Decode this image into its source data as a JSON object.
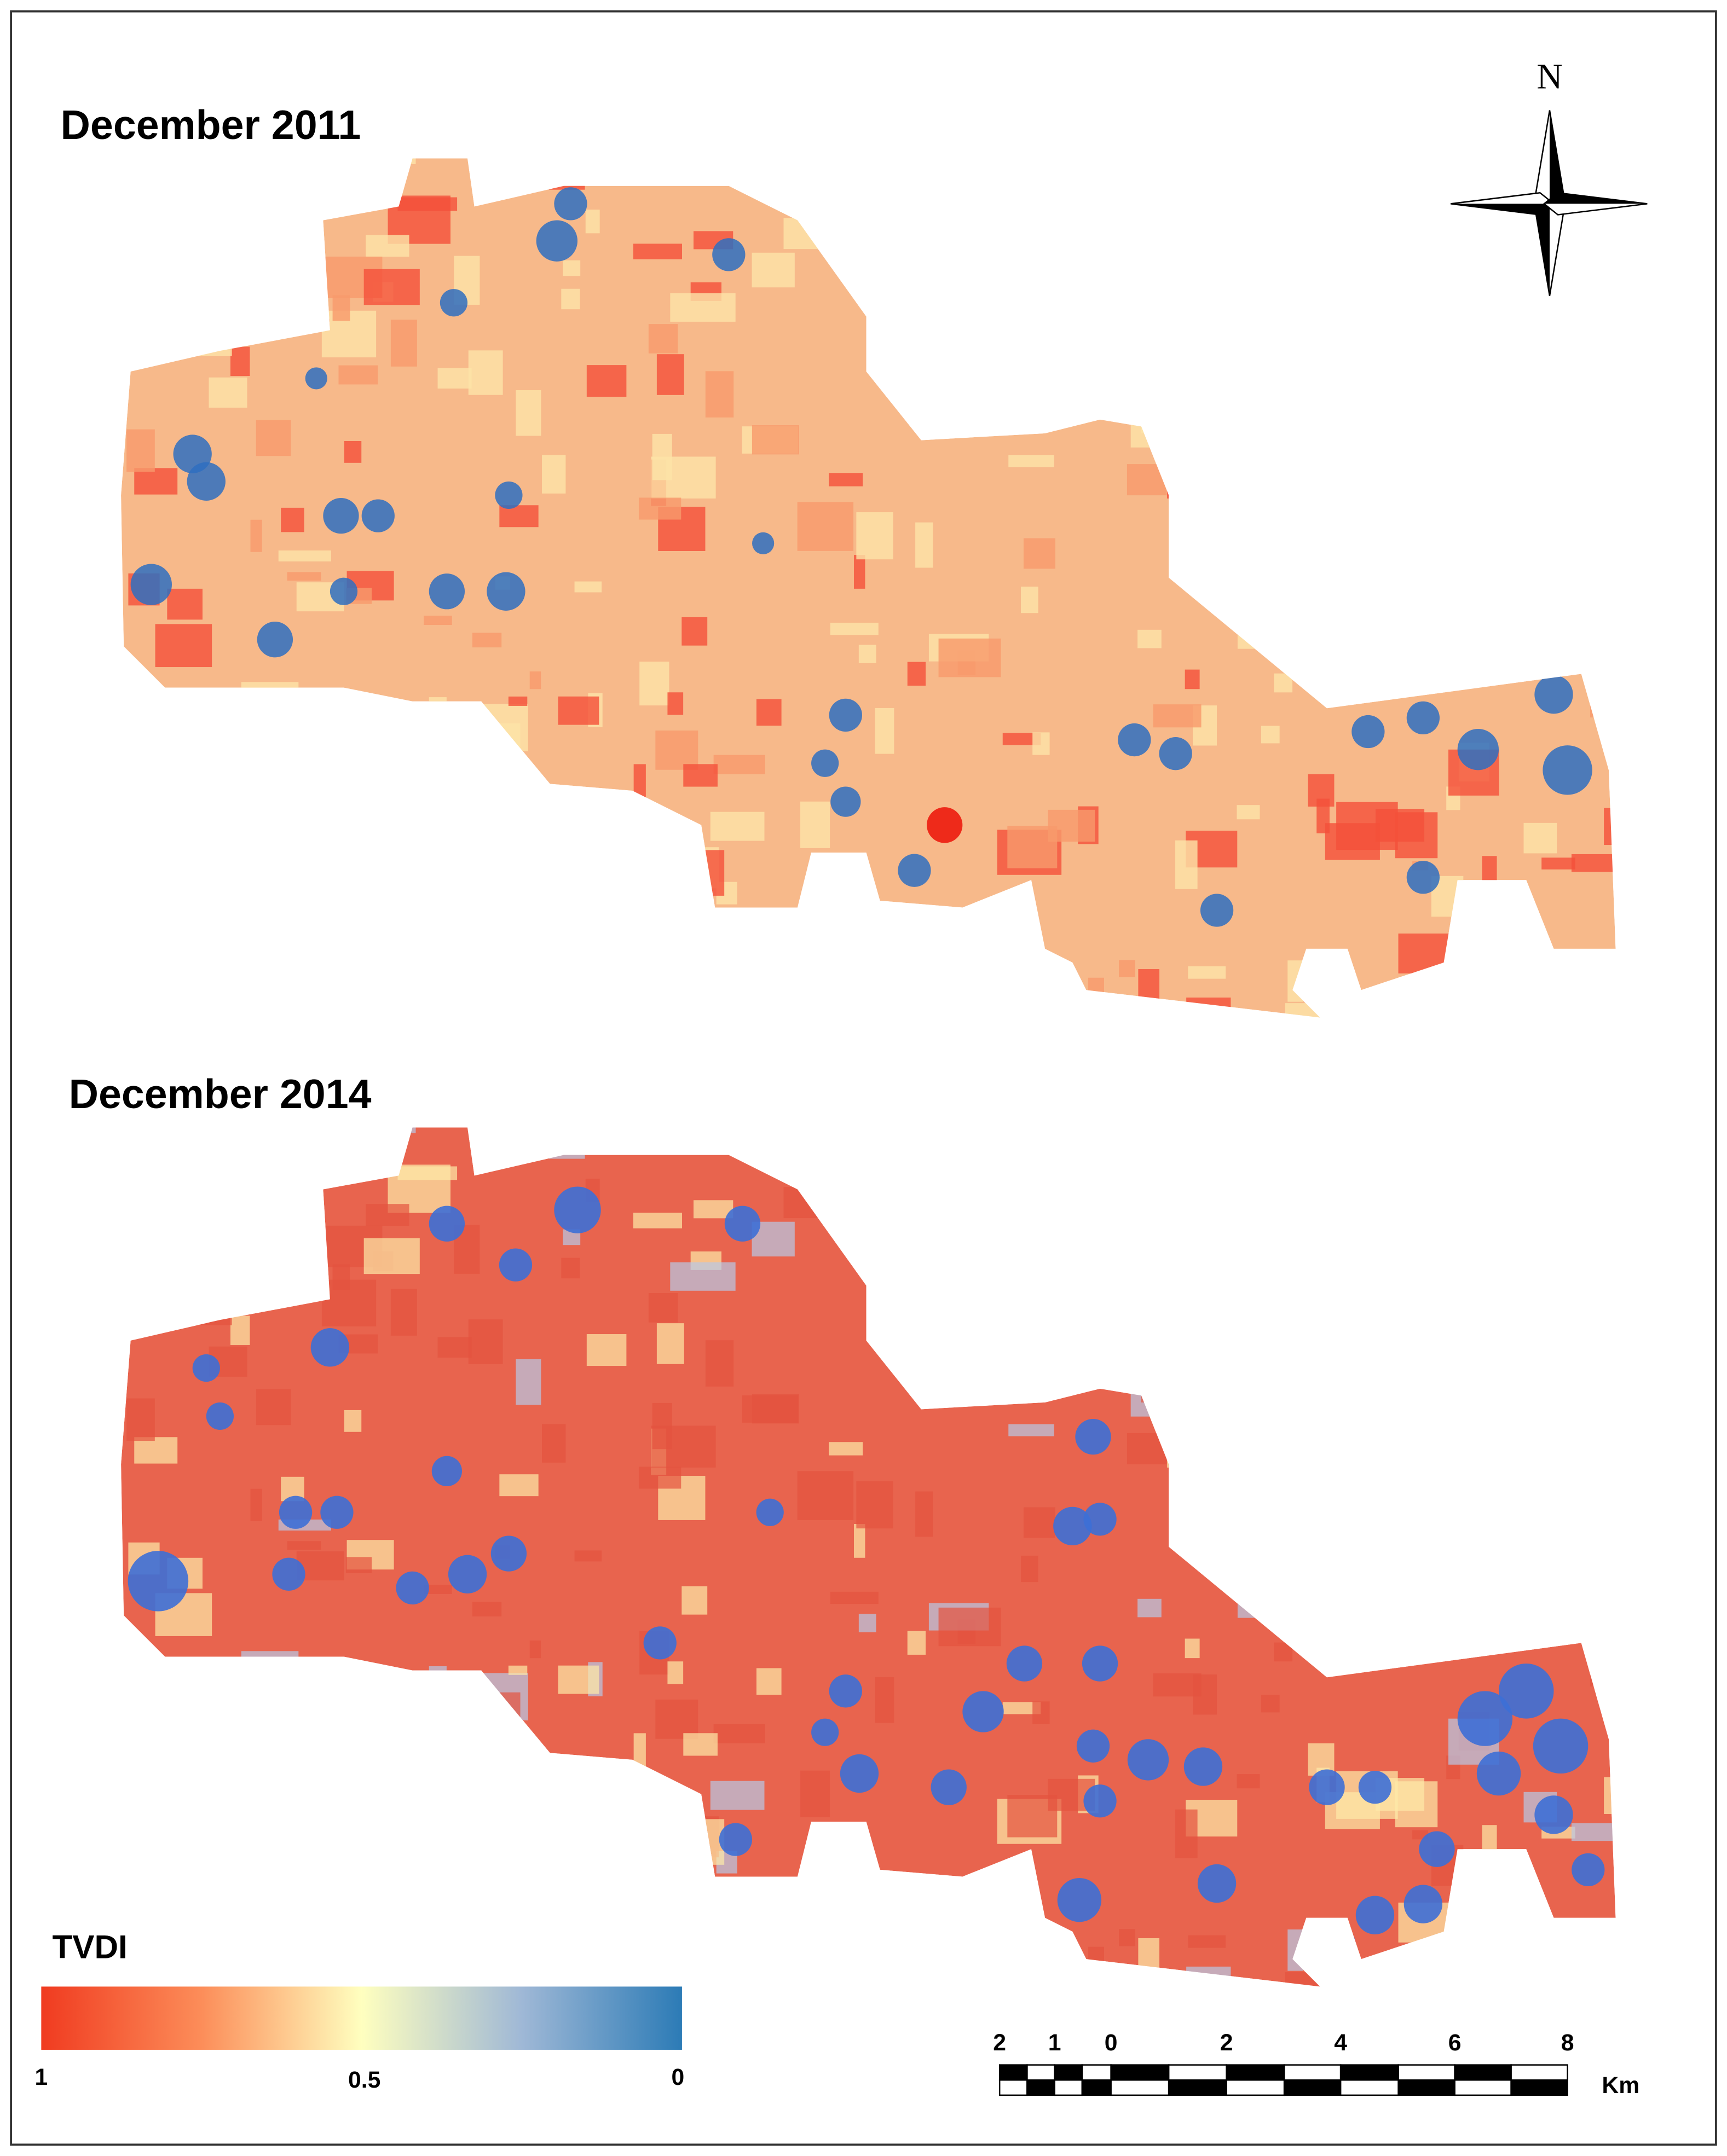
{
  "maps": [
    {
      "title": "December 2011"
    },
    {
      "title": "December 2014"
    }
  ],
  "north_arrow": {
    "label": "N"
  },
  "legend": {
    "title": "TVDI",
    "labels": [
      "1",
      "0.5",
      "0"
    ]
  },
  "scale_bar": {
    "labels": [
      "2",
      "1",
      "0",
      "2",
      "4",
      "6",
      "8"
    ],
    "unit": "Km"
  }
}
